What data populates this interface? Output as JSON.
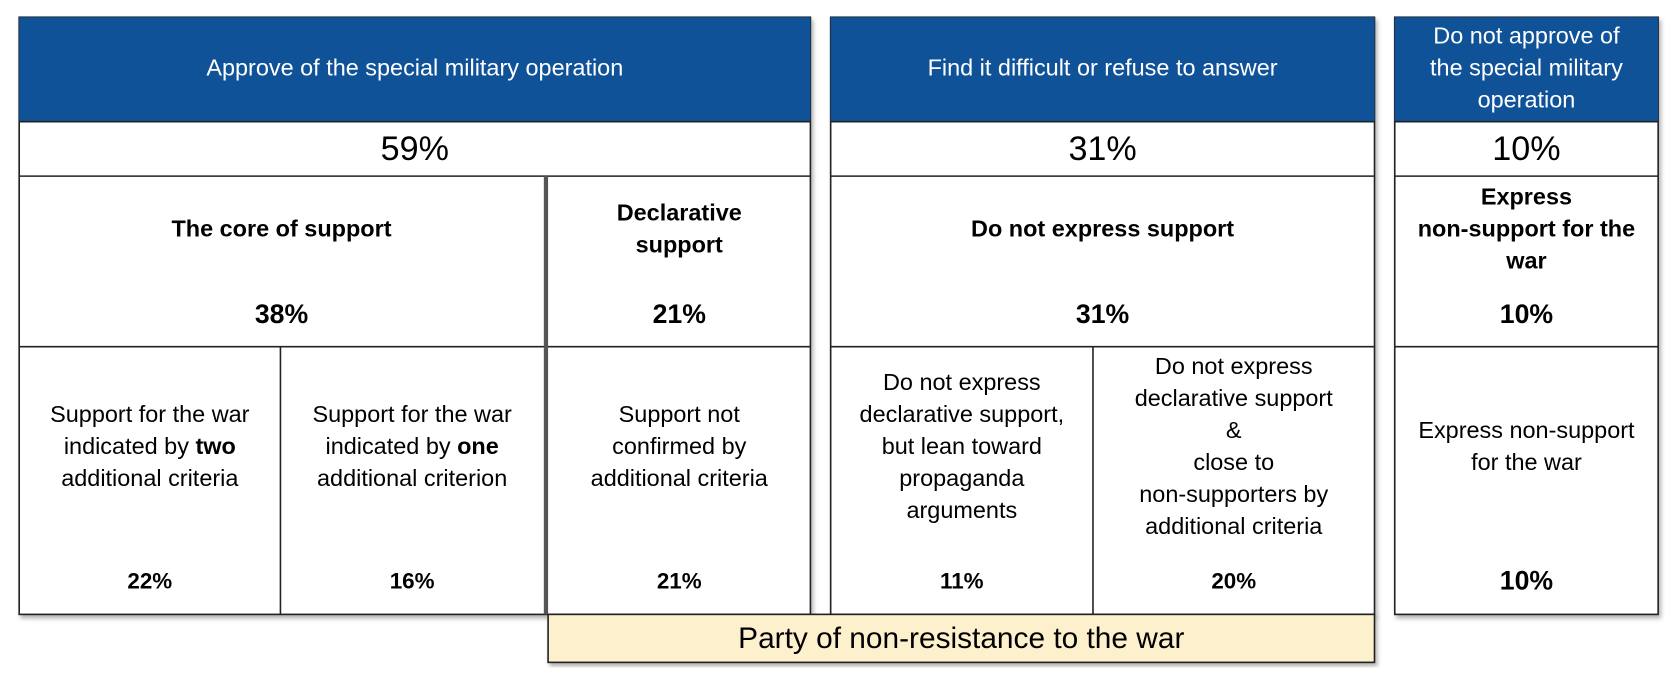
{
  "groups": [
    {
      "header": [
        "Approve of the special military operation"
      ],
      "share": "59%",
      "segments": [
        {
          "title": [
            "The core of support"
          ],
          "share": "38%",
          "parts": [
            {
              "lines": [
                [
                  "Support for the war"
                ],
                [
                  "indicated by ",
                  {
                    "text": "two",
                    "bold": true
                  }
                ],
                [
                  "additional criteria"
                ]
              ],
              "share": "22%"
            },
            {
              "lines": [
                [
                  "Support for the war"
                ],
                [
                  "indicated by ",
                  {
                    "text": "one",
                    "bold": true
                  }
                ],
                [
                  "additional criterion"
                ]
              ],
              "share": "16%"
            }
          ]
        },
        {
          "title": [
            "Declarative",
            "support"
          ],
          "share": "21%",
          "parts": [
            {
              "lines": [
                [
                  "Support not"
                ],
                [
                  "confirmed by"
                ],
                [
                  "additional criteria"
                ]
              ],
              "share": "21%"
            }
          ]
        }
      ]
    },
    {
      "header": [
        "Find it difficult or refuse to answer"
      ],
      "share": "31%",
      "segments": [
        {
          "title": [
            "Do not express support"
          ],
          "share": "31%",
          "parts": [
            {
              "lines": [
                [
                  "Do not express"
                ],
                [
                  "declarative support,"
                ],
                [
                  "but lean toward"
                ],
                [
                  "propaganda"
                ],
                [
                  "arguments"
                ]
              ],
              "share": "11%"
            },
            {
              "lines": [
                [
                  "Do not express"
                ],
                [
                  "declarative support"
                ],
                [
                  "&"
                ],
                [
                  "close to"
                ],
                [
                  "non-supporters by"
                ],
                [
                  "additional criteria"
                ]
              ],
              "share": "20%"
            }
          ]
        }
      ]
    },
    {
      "header": [
        "Do not approve of",
        "the special military",
        "operation"
      ],
      "share": "10%",
      "segments": [
        {
          "title": [
            "Express",
            "non-support for the",
            "war"
          ],
          "share": "10%",
          "parts": [
            {
              "lines": [
                [
                  "Express non-support"
                ],
                [
                  "for the war"
                ]
              ],
              "share": "10%"
            }
          ]
        }
      ]
    }
  ],
  "footer": "Party of non-resistance to the war"
}
